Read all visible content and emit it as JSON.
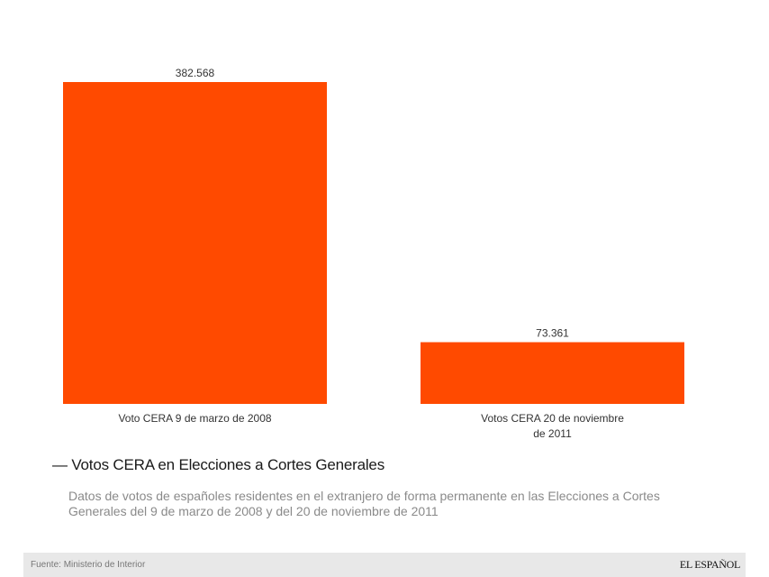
{
  "chart_data": {
    "type": "bar",
    "title": "Votos CERA en Elecciones a Cortes Generales",
    "subtitle": "Datos de votos de españoles residentes en el extranjero de forma permanente en las Elecciones a Cortes Generales del 9 de marzo de 2008 y del 20 de noviembre de 2011",
    "categories": [
      [
        "Voto CERA 9 de marzo de 2008"
      ],
      [
        "Votos CERA 20 de noviembre",
        "de 2011"
      ]
    ],
    "values": [
      382568,
      73361
    ],
    "value_labels": [
      "382.568",
      "73.361"
    ],
    "xlabel": "",
    "ylabel": "",
    "ylim": [
      0,
      382568
    ],
    "grid": false,
    "bar_color": "#ff4a00"
  },
  "header": {
    "title_dash": "—",
    "title": "Votos CERA en Elecciones a Cortes Generales",
    "subtitle": "Datos de votos de españoles residentes en el extranjero de forma permanente en las Elecciones a Cortes Generales del 9 de marzo de 2008 y del 20 de noviembre de 2011"
  },
  "footer": {
    "source": "Fuente: Ministerio de Interior",
    "brand": "EL ESPAÑOL"
  }
}
